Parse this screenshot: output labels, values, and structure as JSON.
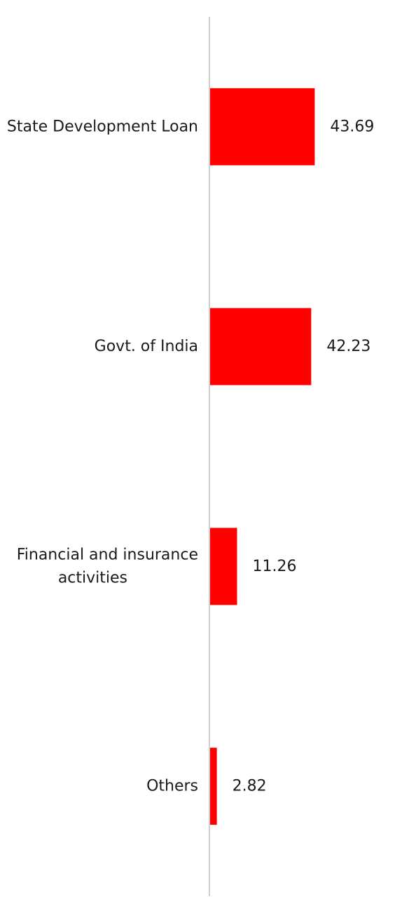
{
  "chart_data": {
    "type": "bar",
    "orientation": "horizontal",
    "categories": [
      "State Development Loan",
      "Govt. of India",
      "Financial and insurance activities",
      "Others"
    ],
    "category_lines": [
      [
        "State Development Loan"
      ],
      [
        "Govt. of India"
      ],
      [
        "Financial and insurance",
        "activities"
      ],
      [
        "Others"
      ]
    ],
    "values": [
      43.69,
      42.23,
      11.26,
      2.82
    ],
    "value_labels": [
      "43.69",
      "42.23",
      "11.26",
      "2.82"
    ],
    "title": "",
    "xlabel": "",
    "ylabel": "",
    "xlim": [
      0,
      86
    ],
    "grid": false,
    "legend": "none",
    "colors": {
      "bar": "#ff0000",
      "axis": "#d0d0d0",
      "text": "#1a1a1a"
    }
  }
}
